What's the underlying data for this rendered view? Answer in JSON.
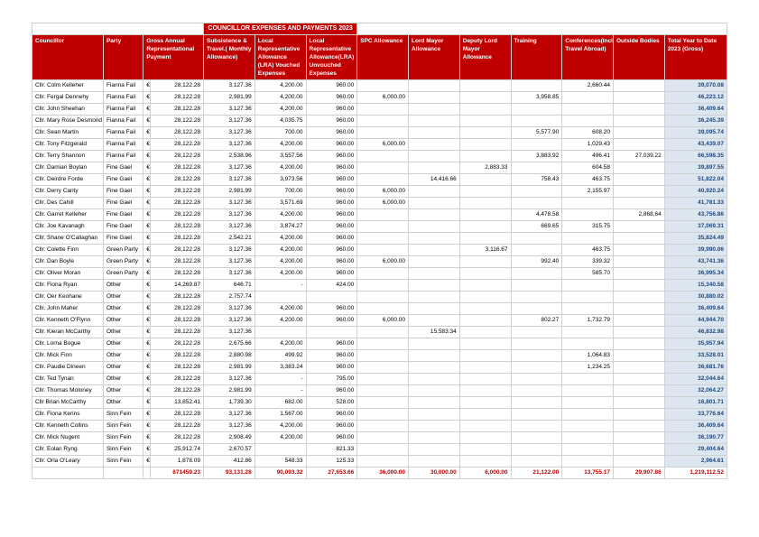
{
  "title": "COUNCILLOR EXPENSES AND PAYMENTS 2023",
  "currency_symbol": "€",
  "colors": {
    "header_bg": "#c00000",
    "header_fg": "#ffffff",
    "total_bg": "#dce6f1",
    "total_fg": "#1f497d",
    "border": "#d0d0d0",
    "totals_row_fg": "#c00000"
  },
  "columns": [
    "Councillor",
    "Party",
    "Gross Annual Representational Payment",
    "Subsistence & Travel.( Monthly Allowance)",
    "Local Representative Allowance (LRA) Vouched Expenses",
    "Local Representative Allowance(LRA) Unvouched Expenses",
    "SPC Allowance",
    "Lord Mayor Allowance",
    "Deputy Lord Mayor Allowance",
    "Training",
    "Conferences(Including Travel Abroad)",
    "Outside Bodies",
    "Total Year to Date 2023 (Gross)"
  ],
  "rows": [
    {
      "c": "Cllr. Colm Kelleher",
      "p": "Fianna Fail",
      "g": "28,122.28",
      "v": [
        "3,127.36",
        "4,200.00",
        "960.00",
        "",
        "",
        "",
        "",
        "2,660.44",
        "",
        "39,070.08"
      ]
    },
    {
      "c": "Cllr. Fergal Dennehy",
      "p": "Fianna Fail",
      "g": "28,122.28",
      "v": [
        "2,981.99",
        "4,200.00",
        "960.00",
        "6,000.00",
        "",
        "",
        "3,958.85",
        "",
        "",
        "46,223.12"
      ]
    },
    {
      "c": "Cllr. John Sheehan",
      "p": "Fianna Fail",
      "g": "28,122.28",
      "v": [
        "3,127.36",
        "4,200.00",
        "960.00",
        "",
        "",
        "",
        "",
        "",
        "",
        "36,409.64"
      ]
    },
    {
      "c": "Cllr. Mary Rose Desmond",
      "p": "Fianna Fail",
      "g": "28,122.28",
      "v": [
        "3,127.36",
        "4,035.75",
        "960.00",
        "",
        "",
        "",
        "",
        "",
        "",
        "36,245.39"
      ]
    },
    {
      "c": "Cllr. Sean Martin",
      "p": "Fianna Fail",
      "g": "28,122.28",
      "v": [
        "3,127.36",
        "700.00",
        "960.00",
        "",
        "",
        "",
        "5,577.90",
        "608.20",
        "",
        "39,095.74"
      ]
    },
    {
      "c": "Cllr. Tony Fitzgerald",
      "p": "Fianna Fail",
      "g": "28,122.28",
      "v": [
        "3,127.36",
        "4,200.00",
        "960.00",
        "6,000.00",
        "",
        "",
        "",
        "1,029.43",
        "",
        "43,439.07"
      ]
    },
    {
      "c": "Cllr. Terry Shannon",
      "p": "Fianna Fail",
      "g": "28,122.28",
      "v": [
        "2,538.96",
        "3,557.56",
        "960.00",
        "",
        "",
        "",
        "3,883.92",
        "496.41",
        "27,039.22",
        "66,598.35"
      ]
    },
    {
      "c": "Cllr. Damian Boylan",
      "p": "Fine Gael",
      "g": "28,122.28",
      "v": [
        "3,127.36",
        "4,200.00",
        "960.00",
        "",
        "",
        "2,883.33",
        "",
        "604.58",
        "",
        "39,897.55"
      ]
    },
    {
      "c": "Cllr. Deirdre Forde",
      "p": "Fine Gael",
      "g": "28,122.28",
      "v": [
        "3,127.36",
        "3,973.56",
        "960.00",
        "",
        "14,416.66",
        "",
        "758.43",
        "463.75",
        "",
        "51,822.04"
      ]
    },
    {
      "c": "Cllr. Derry Canty",
      "p": "Fine Gael",
      "g": "28,122.28",
      "v": [
        "2,981.99",
        "700.00",
        "960.00",
        "6,000.00",
        "",
        "",
        "",
        "2,155.97",
        "",
        "40,920.24"
      ]
    },
    {
      "c": "Cllr. Des Cahill",
      "p": "Fine Gael",
      "g": "28,122.28",
      "v": [
        "3,127.36",
        "3,571.69",
        "960.00",
        "6,000.00",
        "",
        "",
        "",
        "",
        "",
        "41,781.33"
      ]
    },
    {
      "c": "Cllr. Garret Kelleher",
      "p": "Fine Gael",
      "g": "28,122.28",
      "v": [
        "3,127.36",
        "4,200.00",
        "960.00",
        "",
        "",
        "",
        "4,478.58",
        "",
        "2,868.64",
        "43,756.86"
      ]
    },
    {
      "c": "Cllr. Joe Kavanagh",
      "p": "Fine Gael",
      "g": "28,122.28",
      "v": [
        "3,127.36",
        "3,874.27",
        "960.00",
        "",
        "",
        "",
        "669.65",
        "315.75",
        "",
        "37,069.31"
      ]
    },
    {
      "c": "Cllr. Shane O'Callaghan",
      "p": "Fine Gael",
      "g": "28,122.28",
      "v": [
        "2,542.21",
        "4,200.00",
        "960.00",
        "",
        "",
        "",
        "",
        "",
        "",
        "35,824.49"
      ]
    },
    {
      "c": "Cllr. Colette Finn",
      "p": "Green Party",
      "g": "28,122.28",
      "v": [
        "3,127.36",
        "4,200.00",
        "960.00",
        "",
        "",
        "3,116.67",
        "",
        "463.75",
        "",
        "39,990.06"
      ]
    },
    {
      "c": "Cllr. Dan Boyle",
      "p": "Green Party",
      "g": "28,122.28",
      "v": [
        "3,127.36",
        "4,200.00",
        "960.00",
        "6,000.00",
        "",
        "",
        "992.40",
        "339.32",
        "",
        "43,741.36"
      ]
    },
    {
      "c": "Cllr. Oliver Moran",
      "p": "Green Party",
      "g": "28,122.28",
      "v": [
        "3,127.36",
        "4,200.00",
        "960.00",
        "",
        "",
        "",
        "",
        "585.70",
        "",
        "36,995.34"
      ]
    },
    {
      "c": "Cllr. Fiona Ryan",
      "p": "Other",
      "g": "14,269.87",
      "v": [
        "646.71",
        "-",
        "424.00",
        "",
        "",
        "",
        "",
        "",
        "",
        "15,340.58"
      ]
    },
    {
      "c": "Cllr. Oer Keohane",
      "p": "Other",
      "g": "28,122.28",
      "v": [
        "2,757.74",
        "",
        "",
        "",
        "",
        "",
        "",
        "",
        "",
        "30,880.02"
      ]
    },
    {
      "c": "Cllr. John Maher",
      "p": "Other",
      "g": "28,122.28",
      "v": [
        "3,127.36",
        "4,200.00",
        "960.00",
        "",
        "",
        "",
        "",
        "",
        "",
        "36,409.64"
      ]
    },
    {
      "c": "Cllr. Kenneth O'Flynn",
      "p": "Other",
      "g": "28,122.28",
      "v": [
        "3,127.36",
        "4,200.00",
        "960.00",
        "6,000.00",
        "",
        "",
        "802.27",
        "1,732.79",
        "",
        "44,944.70"
      ]
    },
    {
      "c": "Cllr. Kieran McCarthy",
      "p": "Other",
      "g": "28,122.28",
      "v": [
        "3,127.36",
        "",
        "",
        "",
        "15,583.34",
        "",
        "",
        "",
        "",
        "46,832.98"
      ]
    },
    {
      "c": "Cllr. Lorna Bogue",
      "p": "Other",
      "g": "28,122.28",
      "v": [
        "2,675.66",
        "4,200.00",
        "960.00",
        "",
        "",
        "",
        "",
        "",
        "",
        "35,957.94"
      ]
    },
    {
      "c": "Cllr. Mick Finn",
      "p": "Other",
      "g": "28,122.28",
      "v": [
        "2,880.98",
        "499.92",
        "960.00",
        "",
        "",
        "",
        "",
        "1,064.83",
        "",
        "33,528.01"
      ]
    },
    {
      "c": "Cllr. Paudie Dineen",
      "p": "Other",
      "g": "28,122.28",
      "v": [
        "2,981.99",
        "3,383.24",
        "960.00",
        "",
        "",
        "",
        "",
        "1,234.25",
        "",
        "36,681.76"
      ]
    },
    {
      "c": "Cllr. Ted Tynan",
      "p": "Other",
      "g": "28,122.28",
      "v": [
        "3,127.36",
        "-",
        "795.00",
        "",
        "",
        "",
        "",
        "",
        "",
        "32,044.64"
      ]
    },
    {
      "c": "Cllr. Thomas Moloney",
      "p": "Other",
      "g": "28,122.28",
      "v": [
        "2,981.99",
        "-",
        "960.00",
        "",
        "",
        "",
        "",
        "",
        "",
        "32,064.27"
      ]
    },
    {
      "c": "Cllr Brian McCarthy",
      "p": "Other",
      "g": "13,852.41",
      "v": [
        "1,739.30",
        "682.00",
        "528.00",
        "",
        "",
        "",
        "",
        "",
        "",
        "16,801.71"
      ]
    },
    {
      "c": "Cllr. Fiona Kerins",
      "p": "Sinn Fein",
      "g": "28,122.28",
      "v": [
        "3,127.36",
        "1,567.00",
        "960.00",
        "",
        "",
        "",
        "",
        "",
        "",
        "33,776.64"
      ]
    },
    {
      "c": "Cllr. Kenneth Collins",
      "p": "Sinn Fein",
      "g": "28,122.28",
      "v": [
        "3,127.36",
        "4,200.00",
        "960.00",
        "",
        "",
        "",
        "",
        "",
        "",
        "36,409.64"
      ]
    },
    {
      "c": "Cllr. Mick Nugent",
      "p": "Sinn Fein",
      "g": "28,122.28",
      "v": [
        "2,908.49",
        "4,200.00",
        "960.00",
        "",
        "",
        "",
        "",
        "",
        "",
        "36,190.77"
      ]
    },
    {
      "c": "Cllr. Eolan Ryng",
      "p": "Sinn Fein",
      "g": "25,912.74",
      "v": [
        "2,670.57",
        "",
        "821.33",
        "",
        "",
        "",
        "",
        "",
        "",
        "29,404.64"
      ]
    },
    {
      "c": "Cllr. Orla O'Leary",
      "p": "Sinn Fein",
      "g": "1,878.09",
      "v": [
        "412.86",
        "548.33",
        "125.33",
        "",
        "",
        "",
        "",
        "",
        "",
        "2,964.61"
      ]
    }
  ],
  "totals": [
    "871459.23",
    "93,131.28",
    "90,093.32",
    "27,653.66",
    "36,000.00",
    "30,000.00",
    "6,000.00",
    "21,122.00",
    "13,755.17",
    "29,907.86",
    "1,219,112.52"
  ]
}
